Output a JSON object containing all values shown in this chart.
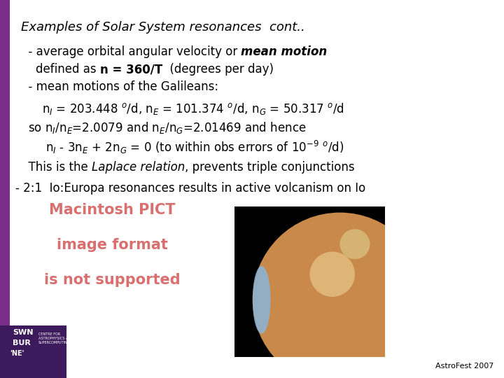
{
  "bg_color": "#ffffff",
  "left_bar_color": "#7b2d8b",
  "title": "Examples of Solar System resonances  cont..",
  "footer": "AstroFest 2007",
  "pict_text_lines": [
    "Macintosh PICT",
    "image format",
    "is not supported"
  ],
  "pict_text_color": "#d97070",
  "font_size_title": 13,
  "font_size_body": 12,
  "font_size_footer": 8
}
